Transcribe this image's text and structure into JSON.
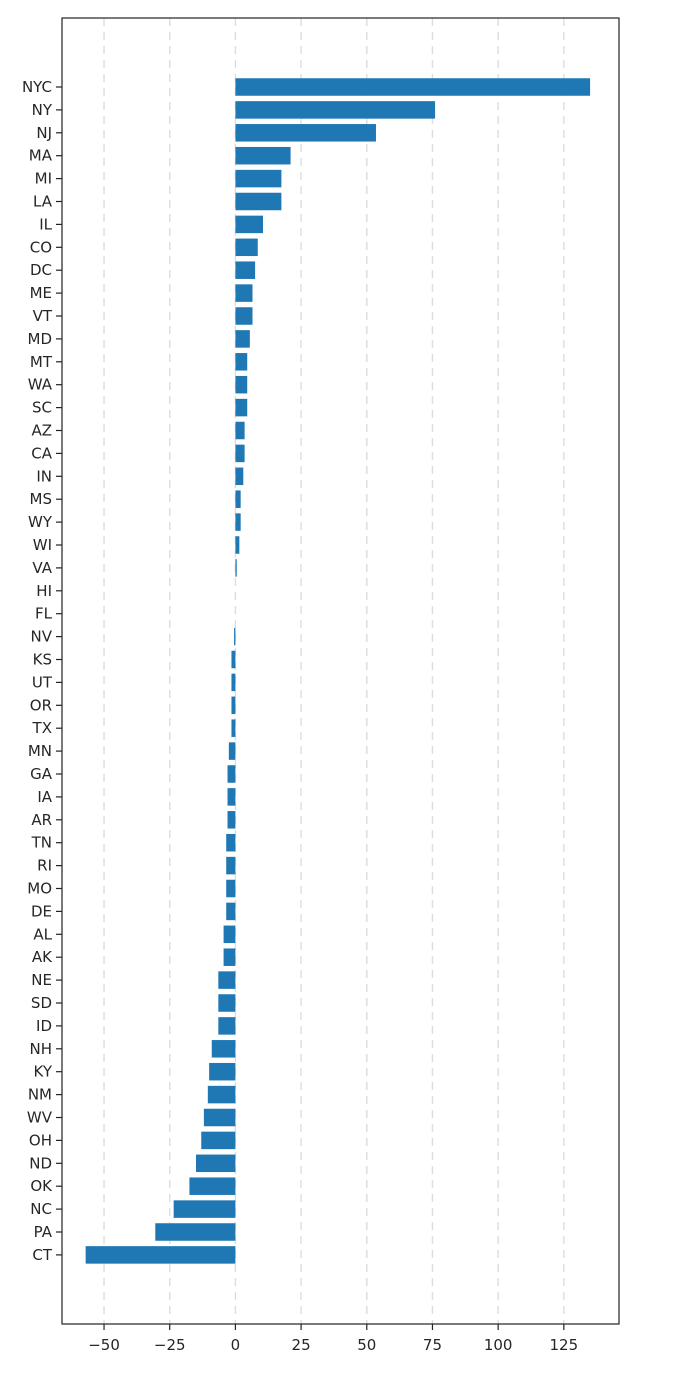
{
  "chart_data": {
    "type": "bar",
    "orientation": "horizontal",
    "title": "",
    "xlabel": "",
    "ylabel": "",
    "categories": [
      "NYC",
      "NY",
      "NJ",
      "MA",
      "MI",
      "LA",
      "IL",
      "CO",
      "DC",
      "ME",
      "VT",
      "MD",
      "MT",
      "WA",
      "SC",
      "AZ",
      "CA",
      "IN",
      "MS",
      "WY",
      "WI",
      "VA",
      "HI",
      "FL",
      "NV",
      "KS",
      "UT",
      "OR",
      "TX",
      "MN",
      "GA",
      "IA",
      "AR",
      "TN",
      "RI",
      "MO",
      "DE",
      "AL",
      "AK",
      "NE",
      "SD",
      "ID",
      "NH",
      "KY",
      "NM",
      "WV",
      "OH",
      "ND",
      "OK",
      "NC",
      "PA",
      "CT"
    ],
    "values": [
      135,
      76,
      53.5,
      21,
      17.5,
      17.5,
      10.5,
      8.5,
      7.5,
      6.5,
      6.5,
      5.5,
      4.5,
      4.5,
      4.5,
      3.5,
      3.5,
      3,
      2,
      2,
      1.5,
      0.5,
      0,
      0,
      -0.5,
      -1.5,
      -1.5,
      -1.5,
      -1.5,
      -2.5,
      -3,
      -3,
      -3,
      -3.5,
      -3.5,
      -3.5,
      -3.5,
      -4.5,
      -4.5,
      -6.5,
      -6.5,
      -6.5,
      -9,
      -10,
      -10.5,
      -12,
      -13,
      -15,
      -17.5,
      -23.5,
      -30.5,
      -57
    ],
    "xlim": [
      -66,
      146
    ],
    "xticks": [
      -50,
      -25,
      0,
      25,
      50,
      75,
      100,
      125
    ],
    "xtick_labels": [
      "−50",
      "−25",
      "0",
      "25",
      "50",
      "75",
      "100",
      "125"
    ],
    "grid": "x-dashed",
    "bar_color": "#1f77b4",
    "legend": "none"
  }
}
